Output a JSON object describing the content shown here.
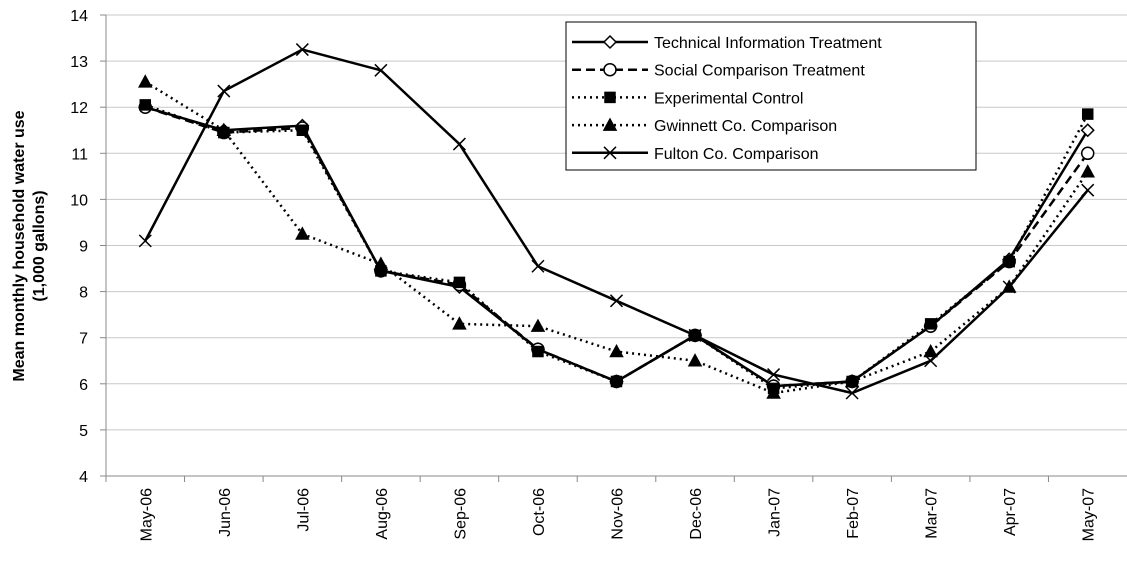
{
  "chart_data": {
    "type": "line",
    "y_label": [
      "Mean monthly household water use",
      "(1,000 gallons)"
    ],
    "categories": [
      "May-06",
      "Jun-06",
      "Jul-06",
      "Aug-06",
      "Sep-06",
      "Oct-06",
      "Nov-06",
      "Dec-06",
      "Jan-07",
      "Feb-07",
      "Mar-07",
      "Apr-07",
      "May-07"
    ],
    "ylim": [
      4,
      14
    ],
    "yticks": [
      4,
      5,
      6,
      7,
      8,
      9,
      10,
      11,
      12,
      13,
      14
    ],
    "grid": true,
    "legend": "top-right",
    "series": [
      {
        "name": "Technical Information Treatment",
        "color": "#000000",
        "dash": "solid",
        "marker": "diamond",
        "values": [
          12.0,
          11.5,
          11.6,
          8.45,
          8.1,
          6.75,
          6.05,
          7.05,
          5.95,
          6.05,
          7.25,
          8.7,
          11.5
        ]
      },
      {
        "name": "Social Comparison Treatment",
        "color": "#000000",
        "dash": "dashed",
        "marker": "circle",
        "values": [
          12.0,
          11.45,
          11.55,
          8.45,
          8.15,
          6.75,
          6.05,
          7.05,
          5.95,
          6.05,
          7.25,
          8.65,
          11.0
        ]
      },
      {
        "name": "Experimental Control",
        "color": "#000000",
        "dash": "dotted",
        "marker": "square",
        "values": [
          12.05,
          11.45,
          11.5,
          8.45,
          8.2,
          6.7,
          6.05,
          7.05,
          5.9,
          6.05,
          7.3,
          8.65,
          11.85
        ]
      },
      {
        "name": "Gwinnett Co. Comparison",
        "color": "#000000",
        "dash": "dotted",
        "marker": "triangle",
        "values": [
          12.55,
          11.5,
          9.25,
          8.6,
          7.3,
          7.25,
          6.7,
          6.5,
          5.8,
          6.05,
          6.7,
          8.1,
          10.6
        ]
      },
      {
        "name": "Fulton Co. Comparison",
        "color": "#000000",
        "dash": "solid",
        "marker": "cross",
        "values": [
          9.1,
          12.35,
          13.25,
          12.8,
          11.2,
          8.55,
          7.8,
          7.05,
          6.2,
          5.8,
          6.5,
          8.1,
          10.2
        ]
      }
    ]
  }
}
